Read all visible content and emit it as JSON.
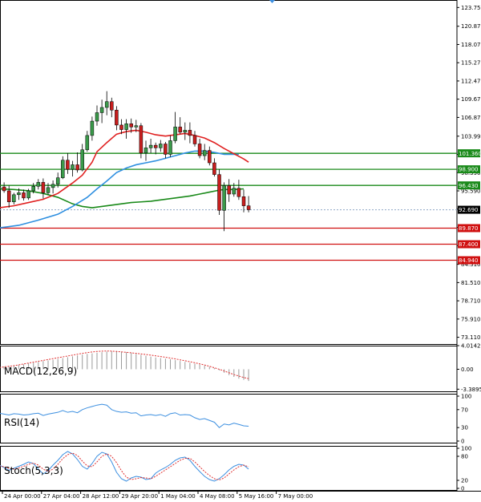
{
  "colors": {
    "bull": "#3a9a4a",
    "bear": "#c81e1e",
    "ma_fast": "#e02020",
    "ma_mid": "#2e8fe0",
    "ma_slow": "#1a8a1a",
    "support": "#d01010",
    "resistance": "#1a8a1a",
    "macd_signal": "#e03030",
    "rsi_line": "#3c8fe0",
    "stoch_k": "#3c8fe0",
    "stoch_d": "#e03030",
    "current_price_box": "#000000"
  },
  "chart_data": [
    {
      "type": "candlestick",
      "name": "price",
      "ylim": [
        71.95,
        124.9
      ],
      "yticks": [
        "123.750",
        "120.870",
        "118.070",
        "115.270",
        "112.470",
        "109.670",
        "106.870",
        "103.990",
        "101.190",
        "98.390",
        "95.590",
        "92.790",
        "89.990",
        "87.190",
        "84.310",
        "81.510",
        "78.710",
        "75.910",
        "73.110"
      ],
      "xticks": [
        "24 Apr 00:00",
        "27 Apr 04:00",
        "28 Apr 12:00",
        "29 Apr 20:00",
        "1 May 04:00",
        "4 May 08:00",
        "5 May 16:00",
        "7 May 00:00"
      ],
      "xtick_index": [
        0,
        8,
        16,
        24,
        32,
        40,
        48,
        56
      ],
      "candles": [
        [
          95.9,
          97.0,
          94.8,
          96.2
        ],
        [
          96.2,
          96.9,
          95.3,
          95.6
        ],
        [
          95.6,
          96.4,
          93.0,
          93.9
        ],
        [
          93.9,
          95.3,
          93.5,
          95.0
        ],
        [
          95.0,
          96.0,
          94.2,
          95.3
        ],
        [
          95.3,
          95.8,
          94.1,
          94.5
        ],
        [
          94.5,
          95.9,
          94.2,
          95.6
        ],
        [
          95.6,
          96.8,
          95.2,
          96.3
        ],
        [
          96.3,
          97.4,
          95.8,
          96.9
        ],
        [
          96.9,
          97.5,
          94.4,
          95.3
        ],
        [
          95.3,
          96.8,
          95.0,
          96.1
        ],
        [
          96.1,
          97.2,
          95.2,
          96.6
        ],
        [
          96.6,
          98.4,
          96.1,
          97.6
        ],
        [
          97.6,
          100.9,
          97.4,
          100.3
        ],
        [
          100.3,
          101.4,
          98.2,
          98.9
        ],
        [
          98.9,
          100.2,
          97.8,
          99.6
        ],
        [
          99.6,
          101.5,
          98.4,
          98.8
        ],
        [
          98.8,
          102.8,
          98.6,
          101.9
        ],
        [
          101.9,
          104.8,
          101.6,
          104.1
        ],
        [
          104.1,
          107.0,
          103.3,
          106.3
        ],
        [
          106.3,
          108.7,
          105.6,
          107.6
        ],
        [
          107.6,
          109.6,
          106.0,
          108.4
        ],
        [
          108.4,
          110.9,
          107.2,
          109.3
        ],
        [
          109.3,
          109.9,
          106.9,
          108.0
        ],
        [
          108.0,
          108.6,
          104.9,
          105.7
        ],
        [
          105.7,
          106.6,
          104.3,
          105.0
        ],
        [
          105.0,
          106.6,
          103.6,
          105.9
        ],
        [
          105.9,
          106.7,
          104.5,
          105.4
        ],
        [
          105.4,
          106.5,
          104.6,
          105.6
        ],
        [
          105.6,
          106.0,
          100.6,
          101.4
        ],
        [
          101.4,
          103.3,
          100.2,
          102.2
        ],
        [
          102.2,
          103.6,
          101.4,
          102.6
        ],
        [
          102.6,
          103.0,
          101.2,
          102.2
        ],
        [
          102.2,
          103.4,
          101.6,
          102.8
        ],
        [
          102.8,
          103.1,
          100.6,
          101.2
        ],
        [
          101.2,
          104.1,
          100.8,
          103.3
        ],
        [
          103.3,
          107.7,
          102.9,
          105.4
        ],
        [
          105.4,
          106.9,
          104.3,
          104.6
        ],
        [
          104.6,
          106.1,
          103.4,
          104.9
        ],
        [
          104.9,
          106.1,
          102.9,
          104.1
        ],
        [
          104.1,
          104.8,
          102.4,
          102.8
        ],
        [
          102.8,
          103.6,
          100.6,
          101.0
        ],
        [
          101.0,
          102.8,
          100.3,
          101.8
        ],
        [
          101.8,
          102.4,
          99.5,
          99.9
        ],
        [
          99.9,
          100.6,
          97.8,
          98.1
        ],
        [
          98.1,
          98.9,
          91.9,
          92.6
        ],
        [
          92.6,
          96.9,
          89.4,
          96.4
        ],
        [
          96.4,
          97.4,
          93.9,
          95.1
        ],
        [
          95.1,
          96.8,
          94.7,
          96.0
        ],
        [
          96.0,
          97.3,
          94.2,
          94.7
        ],
        [
          94.7,
          95.8,
          92.3,
          93.3
        ],
        [
          93.3,
          94.8,
          92.3,
          92.7
        ]
      ],
      "ma_fast": [
        [
          0,
          93.0
        ],
        [
          3,
          93.3
        ],
        [
          6,
          93.8
        ],
        [
          9,
          94.3
        ],
        [
          12,
          95.2
        ],
        [
          15,
          96.8
        ],
        [
          17,
          98.0
        ],
        [
          19,
          100.0
        ],
        [
          20,
          101.6
        ],
        [
          22,
          103.0
        ],
        [
          24,
          104.3
        ],
        [
          26,
          104.7
        ],
        [
          28,
          104.9
        ],
        [
          30,
          104.6
        ],
        [
          32,
          104.2
        ],
        [
          34,
          104.0
        ],
        [
          36,
          104.2
        ],
        [
          38,
          104.4
        ],
        [
          40,
          104.1
        ],
        [
          42,
          103.7
        ],
        [
          44,
          103.0
        ],
        [
          46,
          102.1
        ],
        [
          48,
          101.3
        ],
        [
          50,
          100.5
        ],
        [
          51,
          100.0
        ]
      ],
      "ma_mid": [
        [
          0,
          89.9
        ],
        [
          4,
          90.3
        ],
        [
          8,
          91.1
        ],
        [
          12,
          92.0
        ],
        [
          15,
          93.2
        ],
        [
          18,
          94.6
        ],
        [
          20,
          95.9
        ],
        [
          22,
          97.1
        ],
        [
          24,
          98.4
        ],
        [
          26,
          99.1
        ],
        [
          28,
          99.6
        ],
        [
          30,
          99.9
        ],
        [
          32,
          100.2
        ],
        [
          34,
          100.6
        ],
        [
          36,
          101.0
        ],
        [
          38,
          101.4
        ],
        [
          40,
          101.7
        ],
        [
          42,
          101.7
        ],
        [
          44,
          101.5
        ],
        [
          46,
          101.2
        ],
        [
          48,
          101.2
        ],
        [
          49,
          101.2
        ]
      ],
      "ma_slow": [
        [
          0,
          95.9
        ],
        [
          3,
          95.8
        ],
        [
          6,
          95.6
        ],
        [
          9,
          95.2
        ],
        [
          12,
          94.6
        ],
        [
          15,
          93.6
        ],
        [
          17,
          93.2
        ],
        [
          19,
          93.0
        ],
        [
          21,
          93.2
        ],
        [
          23,
          93.4
        ],
        [
          25,
          93.6
        ],
        [
          27,
          93.8
        ],
        [
          29,
          93.9
        ],
        [
          31,
          94.0
        ],
        [
          33,
          94.2
        ],
        [
          35,
          94.4
        ],
        [
          37,
          94.6
        ],
        [
          39,
          94.8
        ],
        [
          41,
          95.1
        ],
        [
          43,
          95.4
        ],
        [
          45,
          95.7
        ],
        [
          46,
          95.8
        ],
        [
          48,
          95.8
        ],
        [
          50,
          95.9
        ]
      ],
      "current_price": "92.690",
      "current_price_value": 92.69
    },
    {
      "type": "histogram",
      "name": "MACD(12,26,9)",
      "ylim": [
        -3.8895,
        4.0142
      ],
      "yticks": [
        "4.0142",
        "0.00",
        "-3.3895"
      ],
      "histogram": [
        0.35,
        0.45,
        0.55,
        0.65,
        0.75,
        0.85,
        1.0,
        1.1,
        1.25,
        1.4,
        1.5,
        1.6,
        1.75,
        1.9,
        2.05,
        2.2,
        2.35,
        2.5,
        2.6,
        2.7,
        2.8,
        2.9,
        3.0,
        3.05,
        3.1,
        3.0,
        2.9,
        2.8,
        2.6,
        2.45,
        2.3,
        2.15,
        2.0,
        1.9,
        1.8,
        1.7,
        1.55,
        1.4,
        1.25,
        1.1,
        0.95,
        0.8,
        0.6,
        0.4,
        0.2,
        -0.2,
        -0.6,
        -1.0,
        -1.3,
        -1.6,
        -1.8,
        -2.0
      ],
      "signal": [
        0.3,
        0.4,
        0.5,
        0.6,
        0.75,
        0.9,
        1.05,
        1.2,
        1.35,
        1.5,
        1.65,
        1.8,
        1.95,
        2.1,
        2.25,
        2.4,
        2.55,
        2.7,
        2.82,
        2.94,
        3.02,
        3.08,
        3.1,
        3.08,
        3.02,
        2.95,
        2.88,
        2.8,
        2.7,
        2.6,
        2.5,
        2.4,
        2.28,
        2.16,
        2.04,
        1.9,
        1.76,
        1.6,
        1.44,
        1.28,
        1.1,
        0.92,
        0.72,
        0.5,
        0.25,
        0.0,
        -0.3,
        -0.6,
        -0.9,
        -1.15,
        -1.4,
        -1.6
      ]
    },
    {
      "type": "line",
      "name": "RSI(14)",
      "ylim": [
        0,
        100
      ],
      "yticks": [
        "100",
        "70",
        "30",
        "0"
      ],
      "values": [
        62,
        60,
        58,
        61,
        60,
        58,
        59,
        61,
        62,
        57,
        60,
        62,
        64,
        68,
        64,
        66,
        63,
        70,
        74,
        77,
        80,
        82,
        80,
        70,
        66,
        64,
        65,
        62,
        63,
        56,
        58,
        59,
        57,
        59,
        55,
        61,
        63,
        58,
        59,
        58,
        52,
        48,
        50,
        46,
        42,
        30,
        38,
        36,
        40,
        37,
        34,
        33
      ]
    },
    {
      "type": "line",
      "name": "Stoch(5,3,3)",
      "ylim": [
        0,
        100
      ],
      "yticks": [
        "100",
        "80",
        "20",
        "0"
      ],
      "k": [
        58,
        52,
        45,
        50,
        55,
        60,
        66,
        62,
        48,
        36,
        44,
        58,
        70,
        84,
        92,
        86,
        72,
        55,
        48,
        62,
        80,
        90,
        86,
        66,
        40,
        24,
        18,
        26,
        30,
        28,
        22,
        24,
        38,
        46,
        52,
        60,
        70,
        76,
        78,
        70,
        55,
        42,
        30,
        22,
        18,
        24,
        34,
        46,
        55,
        60,
        58,
        48
      ],
      "d": [
        56,
        54,
        50,
        48,
        51,
        55,
        60,
        63,
        58,
        48,
        42,
        48,
        60,
        74,
        84,
        88,
        82,
        68,
        56,
        54,
        66,
        80,
        86,
        80,
        64,
        44,
        28,
        22,
        24,
        27,
        26,
        24,
        30,
        38,
        46,
        54,
        62,
        70,
        75,
        75,
        66,
        54,
        42,
        32,
        24,
        21,
        26,
        36,
        46,
        54,
        58,
        54
      ]
    }
  ],
  "levels": [
    {
      "label": "101.360",
      "value": 101.36,
      "kind": "resistance"
    },
    {
      "label": "98.900",
      "value": 98.9,
      "kind": "resistance"
    },
    {
      "label": "96.430",
      "value": 96.43,
      "kind": "resistance"
    },
    {
      "label": "89.870",
      "value": 89.87,
      "kind": "support"
    },
    {
      "label": "87.400",
      "value": 87.4,
      "kind": "support"
    },
    {
      "label": "84.940",
      "value": 84.94,
      "kind": "support"
    }
  ]
}
